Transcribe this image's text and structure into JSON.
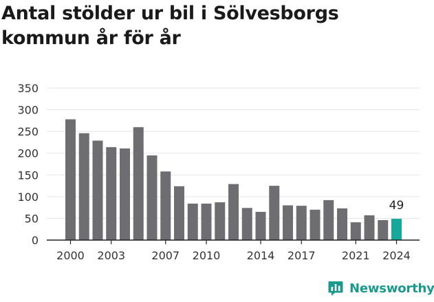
{
  "title": "Antal stölder ur bil i Sölvesborgs kommun år för år",
  "brand": {
    "name": "Newsworthy",
    "icon": "newsworthy-logo-icon",
    "color": "#1a9a8c"
  },
  "colors": {
    "bar": "#6e6d72",
    "highlight": "#16a89a",
    "grid": "#e3e3e3",
    "axis": "#222222"
  },
  "chart_data": {
    "type": "bar",
    "categories": [
      "2000",
      "2001",
      "2002",
      "2003",
      "2004",
      "2005",
      "2006",
      "2007",
      "2008",
      "2009",
      "2010",
      "2011",
      "2012",
      "2013",
      "2014",
      "2015",
      "2016",
      "2017",
      "2018",
      "2019",
      "2020",
      "2021",
      "2022",
      "2023",
      "2024"
    ],
    "values": [
      278,
      246,
      229,
      214,
      211,
      260,
      195,
      158,
      124,
      84,
      84,
      87,
      129,
      74,
      65,
      125,
      80,
      79,
      70,
      92,
      73,
      41,
      57,
      46,
      49
    ],
    "x_tick_labels": [
      "2000",
      "2003",
      "2007",
      "2010",
      "2014",
      "2017",
      "2021",
      "2024"
    ],
    "y_ticks": [
      0,
      50,
      100,
      150,
      200,
      250,
      300,
      350
    ],
    "ylim": [
      0,
      350
    ],
    "highlight": {
      "category": "2024",
      "label": "49"
    },
    "grid": true,
    "legend": "none",
    "title": "Antal stölder ur bil i Sölvesborgs kommun år för år",
    "xlabel": "",
    "ylabel": ""
  }
}
